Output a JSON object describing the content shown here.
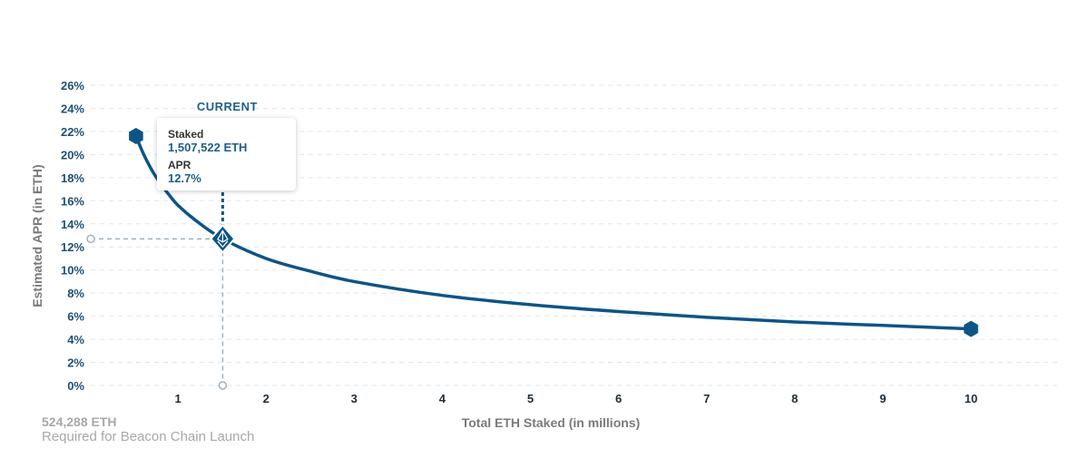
{
  "chart_data": {
    "type": "line",
    "xlabel": "Total ETH Staked  (in millions)",
    "ylabel": "Estimated APR (in ETH)",
    "xlim": [
      0,
      11
    ],
    "ylim": [
      0,
      26
    ],
    "x_ticks": [
      1,
      2,
      3,
      4,
      5,
      6,
      7,
      8,
      9,
      10
    ],
    "x_tick_labels": [
      "1",
      "2",
      "3",
      "4",
      "5",
      "6",
      "7",
      "8",
      "9",
      "10"
    ],
    "y_ticks": [
      0,
      2,
      4,
      6,
      8,
      10,
      12,
      14,
      16,
      18,
      20,
      22,
      24,
      26
    ],
    "y_tick_labels": [
      "0%",
      "2%",
      "4%",
      "6%",
      "8%",
      "10%",
      "12%",
      "14%",
      "16%",
      "18%",
      "20%",
      "22%",
      "24%",
      "26%"
    ],
    "grid": true,
    "series": [
      {
        "x": [
          0.524,
          0.6,
          0.7,
          0.8,
          0.9,
          1.0,
          1.2,
          1.5075,
          2.0,
          2.5,
          3.0,
          4.0,
          5.0,
          6.0,
          7.0,
          8.0,
          9.0,
          10.0
        ],
        "values": [
          21.6,
          20.2,
          18.7,
          17.5,
          16.5,
          15.6,
          14.3,
          12.7,
          11.0,
          9.9,
          9.0,
          7.8,
          7.0,
          6.4,
          5.9,
          5.5,
          5.2,
          4.9
        ]
      }
    ],
    "current_point": {
      "marker_label": "CURRENT",
      "x": 1.5075,
      "y": 12.7,
      "staked_label": "Staked",
      "staked_value": "1,507,522 ETH",
      "apr_label": "APR",
      "apr_value": "12.7%"
    },
    "endpoints": [
      {
        "x": 0.524,
        "y": 21.6
      },
      {
        "x": 10.0,
        "y": 4.9
      }
    ],
    "colors": {
      "line": "#0e5486",
      "marker": "#0e5486",
      "guide": "#9eb0bf"
    }
  },
  "footnote": {
    "amount": "524,288 ETH",
    "text": "Required for Beacon Chain Launch"
  }
}
